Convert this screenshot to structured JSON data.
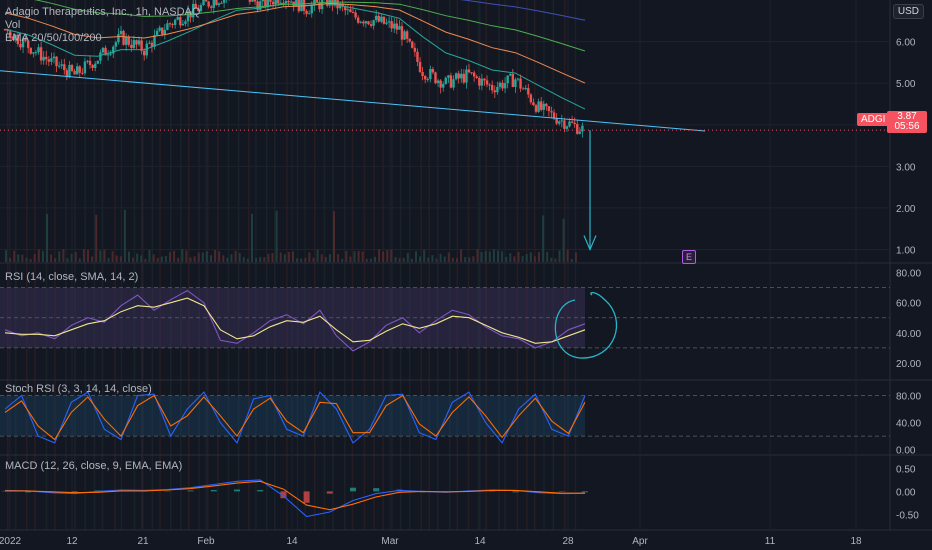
{
  "symbol_title": "Adagio Therapeutics, Inc., 1h, NASDAQ",
  "vol_label": "Vol",
  "ema_label": "EMA 20/50/100/200",
  "currency": "USD",
  "ticker_tag": "ADGI",
  "last_price": "3.87",
  "countdown": "05:56",
  "earnings_marker": "E",
  "colors": {
    "up": "#26a69a",
    "down": "#ef5350",
    "rsi": "#7e57c2",
    "rsi_ma": "#f0e68c",
    "stoch_k": "#2962ff",
    "stoch_d": "#ff6d00",
    "trend": "#4fc3f7",
    "annot": "#27b5c8"
  },
  "chart_data": [
    {
      "type": "line",
      "name": "price",
      "title": "Adagio Therapeutics, Inc., 1h, NASDAQ",
      "x_ticks": [
        "2022",
        "12",
        "21",
        "Feb",
        "14",
        "Mar",
        "14",
        "28",
        "Apr",
        "11",
        "18"
      ],
      "y_ticks": [
        "6.00",
        "5.00",
        "4.00",
        "3.00",
        "2.00",
        "1.00"
      ],
      "ylim": [
        0.7,
        7.0
      ],
      "x": [
        "Jan 3",
        "Jan 6",
        "Jan 10",
        "Jan 13",
        "Jan 17",
        "Jan 20",
        "Jan 24",
        "Jan 27",
        "Jan 31",
        "Feb 3",
        "Feb 7",
        "Feb 10",
        "Feb 14",
        "Feb 17",
        "Feb 22",
        "Feb 25",
        "Mar 1",
        "Mar 4",
        "Mar 8",
        "Mar 11",
        "Mar 15",
        "Mar 18",
        "Mar 22",
        "Mar 25",
        "Mar 28",
        "Mar 30"
      ],
      "values": [
        6.3,
        5.9,
        5.5,
        5.2,
        5.6,
        6.1,
        5.8,
        6.4,
        6.7,
        7.0,
        7.2,
        6.9,
        7.1,
        6.8,
        7.0,
        6.6,
        6.5,
        6.3,
        5.3,
        5.0,
        5.2,
        4.9,
        5.1,
        4.4,
        4.1,
        3.87
      ],
      "last_price": 3.87,
      "trendline": [
        [
          "Jan 3",
          5.3
        ],
        [
          "Apr 5",
          3.85
        ]
      ],
      "target_arrow": {
        "from": 3.87,
        "to": 1.0
      }
    },
    {
      "type": "line",
      "title": "RSI (14, close, SMA, 14, 2)",
      "y_ticks": [
        "80.00",
        "60.00",
        "40.00",
        "20.00"
      ],
      "ylim": [
        10,
        85
      ],
      "levels": [
        70,
        50,
        30
      ],
      "series": [
        {
          "name": "RSI",
          "values": [
            42,
            38,
            40,
            36,
            45,
            50,
            47,
            58,
            65,
            55,
            62,
            68,
            60,
            35,
            33,
            40,
            48,
            52,
            46,
            55,
            38,
            28,
            34,
            45,
            50,
            40,
            48,
            55,
            52,
            44,
            38,
            36,
            30,
            34,
            42,
            46
          ]
        },
        {
          "name": "RSI MA",
          "values": [
            40,
            39,
            39,
            38,
            42,
            46,
            48,
            54,
            58,
            57,
            60,
            63,
            58,
            42,
            36,
            38,
            44,
            48,
            47,
            51,
            42,
            34,
            35,
            41,
            46,
            43,
            46,
            51,
            50,
            45,
            40,
            37,
            33,
            34,
            38,
            42
          ]
        }
      ]
    },
    {
      "type": "line",
      "title": "Stoch RSI (3, 3, 14, 14, close)",
      "y_ticks": [
        "80.00",
        "40.00",
        "0.00"
      ],
      "ylim": [
        -5,
        100
      ],
      "levels": [
        80,
        20
      ],
      "series": [
        {
          "name": "K",
          "values": [
            60,
            80,
            20,
            10,
            70,
            85,
            30,
            15,
            80,
            82,
            20,
            60,
            85,
            40,
            10,
            75,
            80,
            30,
            20,
            85,
            60,
            10,
            30,
            80,
            82,
            25,
            15,
            70,
            85,
            40,
            10,
            60,
            82,
            30,
            20,
            80
          ]
        },
        {
          "name": "D",
          "values": [
            55,
            72,
            35,
            15,
            55,
            78,
            45,
            20,
            65,
            80,
            35,
            50,
            78,
            50,
            20,
            60,
            76,
            42,
            25,
            70,
            68,
            25,
            25,
            65,
            80,
            38,
            20,
            55,
            78,
            50,
            18,
            50,
            76,
            42,
            24,
            70
          ]
        }
      ]
    },
    {
      "type": "line",
      "title": "MACD (12, 26, close, 9, EMA, EMA)",
      "y_ticks": [
        "0.50",
        "0.00",
        "-0.50"
      ],
      "ylim": [
        -0.8,
        0.75
      ],
      "series": [
        {
          "name": "MACD",
          "values": [
            0.02,
            0.01,
            -0.03,
            -0.05,
            0.0,
            0.03,
            0.02,
            0.04,
            0.08,
            0.15,
            0.22,
            0.25,
            -0.1,
            -0.55,
            -0.45,
            -0.2,
            -0.05,
            0.02,
            0.0,
            -0.02,
            0.01,
            0.03,
            0.02,
            -0.03,
            -0.05,
            -0.04
          ]
        },
        {
          "name": "Signal",
          "values": [
            0.01,
            0.01,
            -0.01,
            -0.03,
            -0.02,
            0.01,
            0.01,
            0.03,
            0.06,
            0.12,
            0.18,
            0.22,
            0.05,
            -0.3,
            -0.4,
            -0.28,
            -0.12,
            -0.02,
            0.0,
            -0.01,
            0.0,
            0.02,
            0.02,
            -0.01,
            -0.04,
            -0.04
          ]
        }
      ]
    }
  ]
}
